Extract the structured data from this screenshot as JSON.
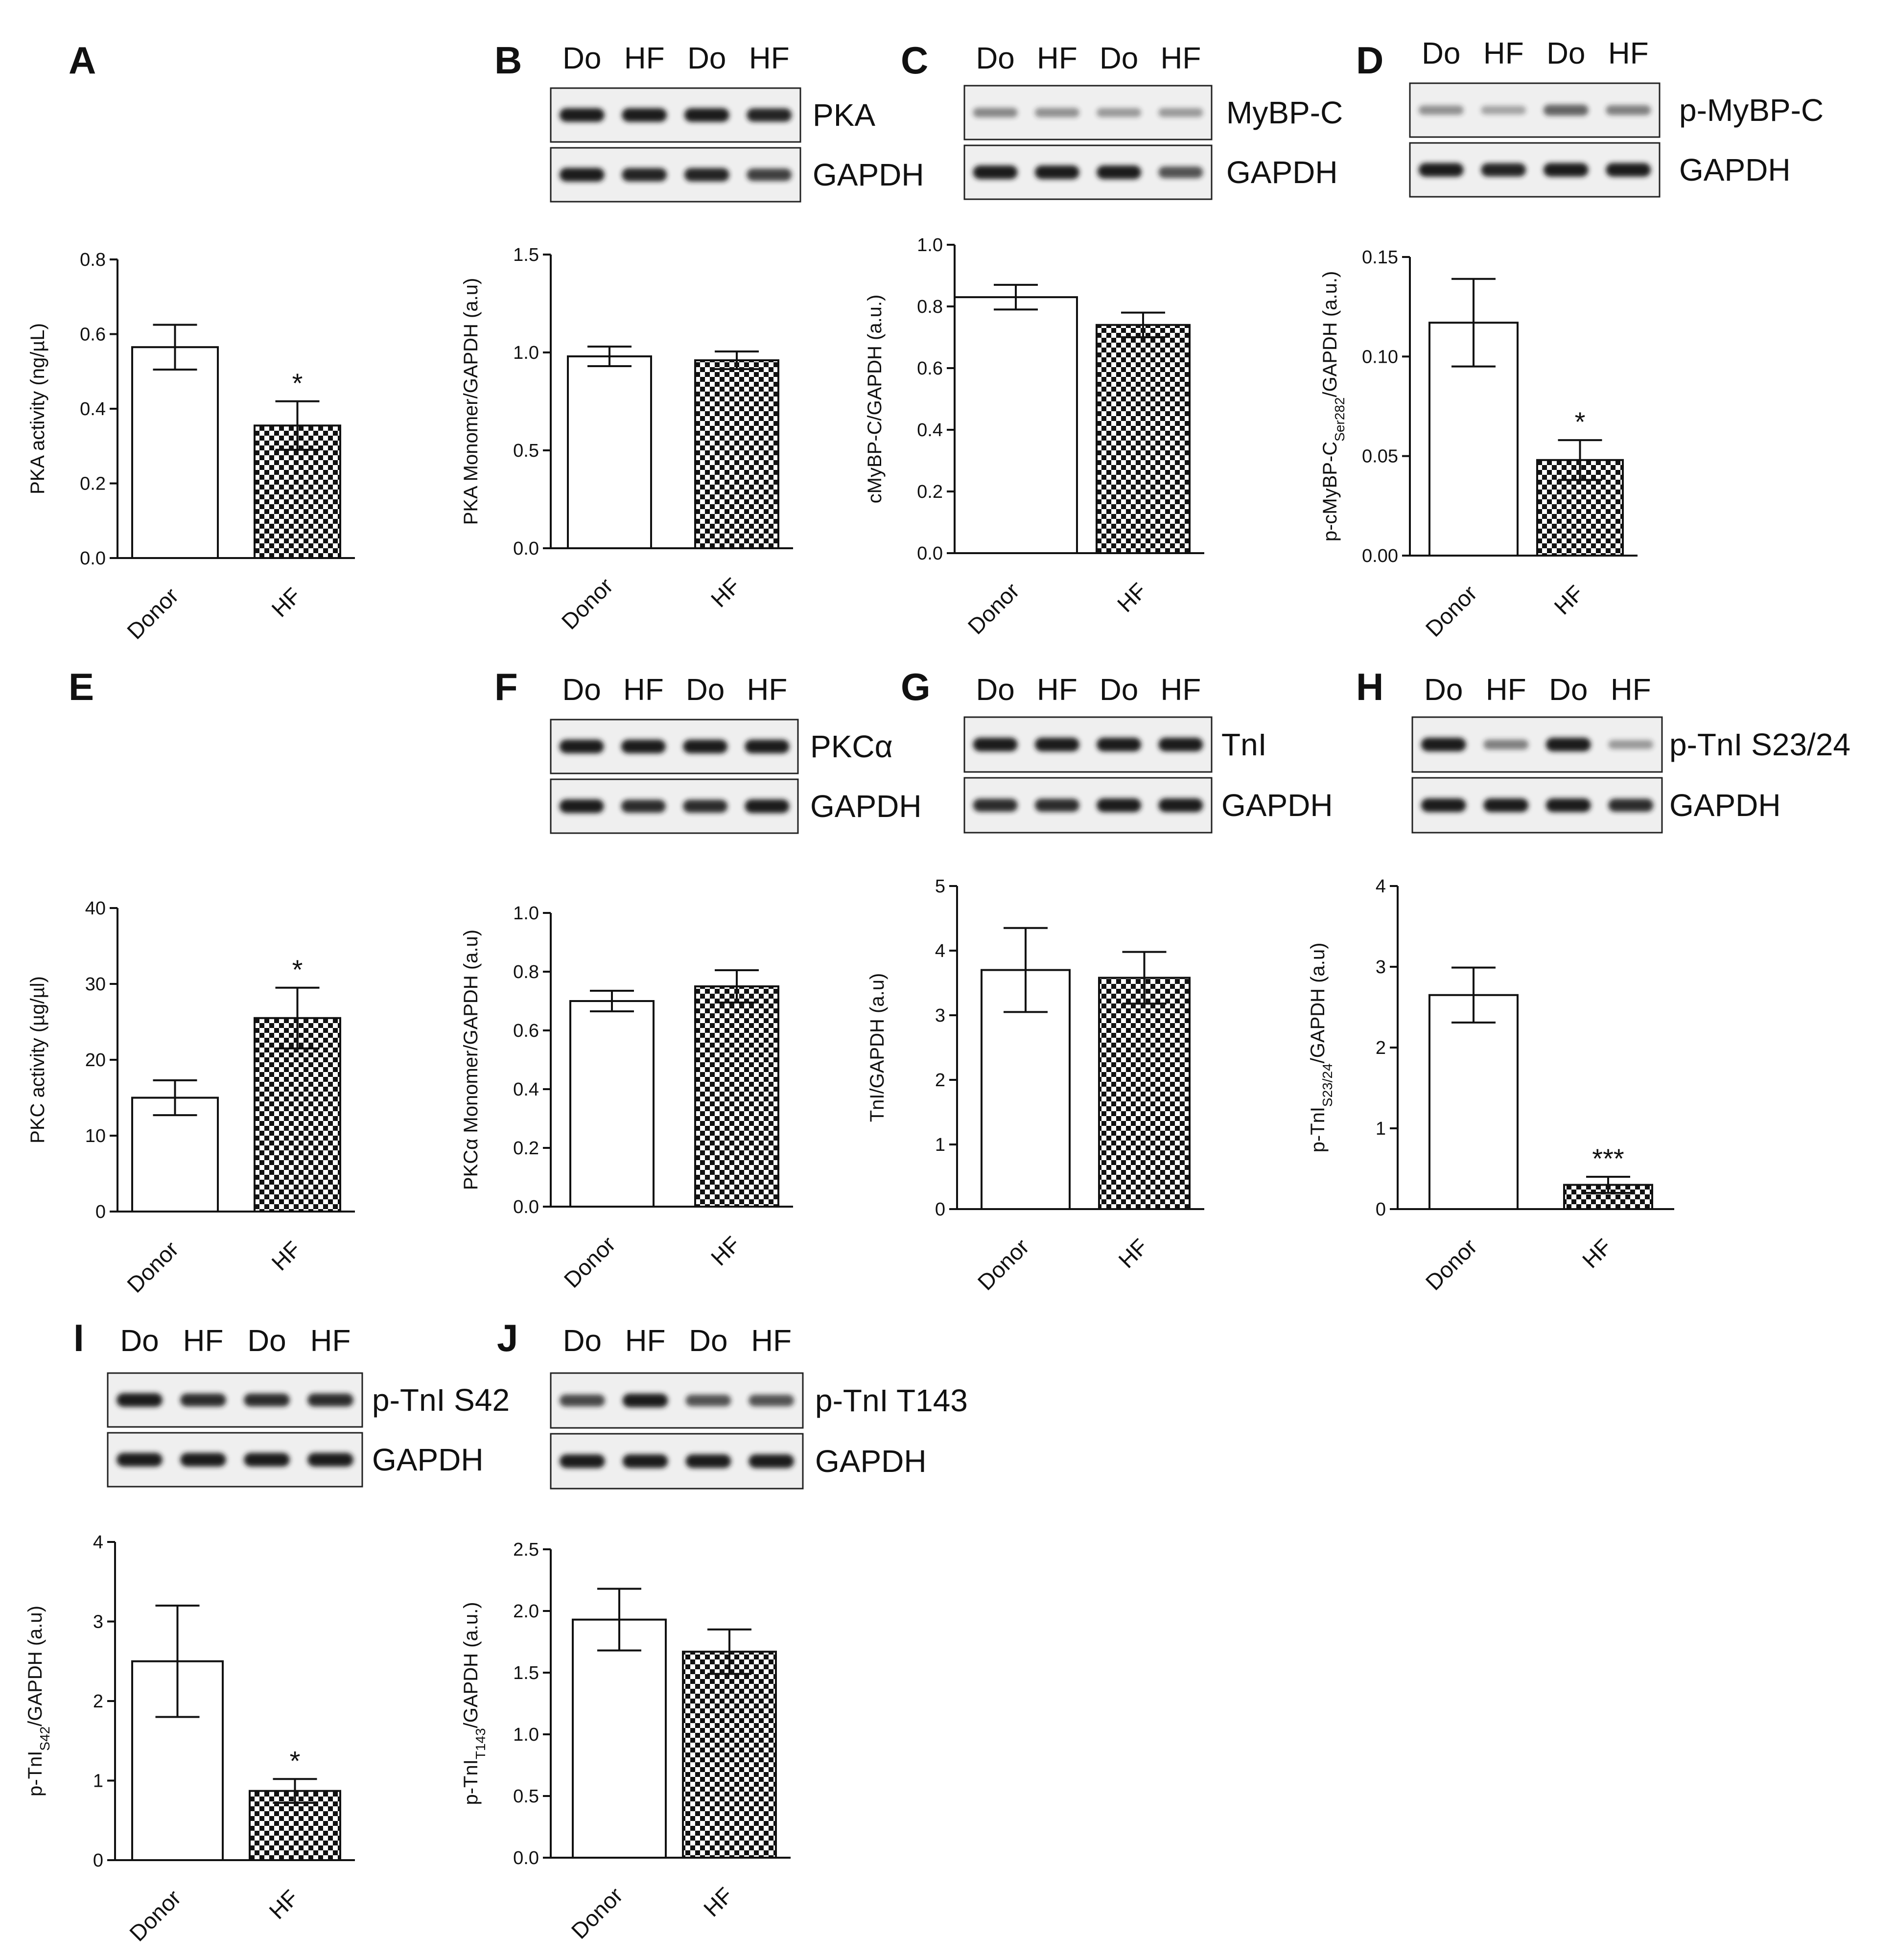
{
  "panels": [
    {
      "letter": "A",
      "blot": null,
      "chart": {
        "ylabel": "PKA activity (ng/µL)",
        "sub": "",
        "ylabel_tail": "",
        "yticks": [
          "0.0",
          "0.2",
          "0.4",
          "0.6",
          "0.8"
        ]
      }
    },
    {
      "letter": "B",
      "blot": {
        "lanes": [
          "Do",
          "HF",
          "Do",
          "HF"
        ],
        "rows": [
          "PKA",
          "GAPDH"
        ]
      },
      "chart": {
        "ylabel": "PKA Monomer/GAPDH (a.u)",
        "sub": "",
        "ylabel_tail": "",
        "yticks": [
          "0.0",
          "0.5",
          "1.0",
          "1.5"
        ]
      }
    },
    {
      "letter": "C",
      "blot": {
        "lanes": [
          "Do",
          "HF",
          "Do",
          "HF"
        ],
        "rows": [
          "MyBP-C",
          "GAPDH"
        ]
      },
      "chart": {
        "ylabel": "cMyBP-C/GAPDH (a.u.)",
        "sub": "",
        "ylabel_tail": "",
        "yticks": [
          "0.0",
          "0.2",
          "0.4",
          "0.6",
          "0.8",
          "1.0"
        ]
      }
    },
    {
      "letter": "D",
      "blot": {
        "lanes": [
          "Do",
          "HF",
          "Do",
          "HF"
        ],
        "rows": [
          "p-MyBP-C",
          "GAPDH"
        ]
      },
      "chart": {
        "ylabel": "p-cMyBP-C",
        "sub": "Ser282",
        "ylabel_tail": "/GAPDH (a.u.)",
        "yticks": [
          "0.00",
          "0.05",
          "0.10",
          "0.15"
        ]
      }
    },
    {
      "letter": "E",
      "blot": null,
      "chart": {
        "ylabel": "PKC activity (µg/µl)",
        "sub": "",
        "ylabel_tail": "",
        "yticks": [
          "0",
          "10",
          "20",
          "30",
          "40"
        ]
      }
    },
    {
      "letter": "F",
      "blot": {
        "lanes": [
          "Do",
          "HF",
          "Do",
          "HF"
        ],
        "rows": [
          "PKCα",
          "GAPDH"
        ]
      },
      "chart": {
        "ylabel": "PKCα Monomer/GAPDH (a.u)",
        "sub": "",
        "ylabel_tail": "",
        "yticks": [
          "0.0",
          "0.2",
          "0.4",
          "0.6",
          "0.8",
          "1.0"
        ]
      }
    },
    {
      "letter": "G",
      "blot": {
        "lanes": [
          "Do",
          "HF",
          "Do",
          "HF"
        ],
        "rows": [
          "TnI",
          "GAPDH"
        ]
      },
      "chart": {
        "ylabel": "TnI/GAPDH (a.u)",
        "sub": "",
        "ylabel_tail": "",
        "yticks": [
          "0",
          "1",
          "2",
          "3",
          "4",
          "5"
        ]
      }
    },
    {
      "letter": "H",
      "blot": {
        "lanes": [
          "Do",
          "HF",
          "Do",
          "HF"
        ],
        "rows": [
          "p-TnI  S23/24",
          "GAPDH"
        ]
      },
      "chart": {
        "ylabel": "p-TnI",
        "sub": "S23/24",
        "ylabel_tail": "/GAPDH (a.u)",
        "yticks": [
          "0",
          "1",
          "2",
          "3",
          "4"
        ]
      }
    },
    {
      "letter": "I",
      "blot": {
        "lanes": [
          "Do",
          "HF",
          "Do",
          "HF"
        ],
        "rows": [
          "p-TnI  S42",
          "GAPDH"
        ]
      },
      "chart": {
        "ylabel": "p-TnI",
        "sub": "S42",
        "ylabel_tail": "/GAPDH (a.u)",
        "yticks": [
          "0",
          "1",
          "2",
          "3",
          "4"
        ]
      }
    },
    {
      "letter": "J",
      "blot": {
        "lanes": [
          "Do",
          "HF",
          "Do",
          "HF"
        ],
        "rows": [
          "p-TnI  T143",
          "GAPDH"
        ]
      },
      "chart": {
        "ylabel": "p-TnI",
        "sub": "T143",
        "ylabel_tail": "/GAPDH (a.u.)",
        "yticks": [
          "0.0",
          "0.5",
          "1.0",
          "1.5",
          "2.0",
          "2.5"
        ]
      }
    }
  ],
  "chart_data": [
    {
      "panel": "A",
      "type": "bar",
      "categories": [
        "Donor",
        "HF"
      ],
      "values": [
        0.565,
        0.355
      ],
      "errors": [
        0.06,
        0.065
      ],
      "significance": [
        "",
        "*"
      ],
      "ylim": [
        0,
        0.8
      ],
      "ylabel": "PKA activity (ng/µL)",
      "xlabel": ""
    },
    {
      "panel": "B",
      "type": "bar",
      "categories": [
        "Donor",
        "HF"
      ],
      "values": [
        0.98,
        0.96
      ],
      "errors": [
        0.05,
        0.045
      ],
      "significance": [
        "",
        ""
      ],
      "ylim": [
        0,
        1.5
      ],
      "ylabel": "PKA Monomer/GAPDH (a.u)",
      "xlabel": ""
    },
    {
      "panel": "C",
      "type": "bar",
      "categories": [
        "Donor",
        "HF"
      ],
      "values": [
        0.83,
        0.74
      ],
      "errors": [
        0.04,
        0.04
      ],
      "significance": [
        "",
        ""
      ],
      "ylim": [
        0,
        1.0
      ],
      "ylabel": "cMyBP-C/GAPDH (a.u.)",
      "xlabel": ""
    },
    {
      "panel": "D",
      "type": "bar",
      "categories": [
        "Donor",
        "HF"
      ],
      "values": [
        0.117,
        0.048
      ],
      "errors": [
        0.022,
        0.01
      ],
      "significance": [
        "",
        "*"
      ],
      "ylim": [
        0,
        0.15
      ],
      "ylabel": "p-cMyBP-CSer282/GAPDH (a.u.)",
      "xlabel": ""
    },
    {
      "panel": "E",
      "type": "bar",
      "categories": [
        "Donor",
        "HF"
      ],
      "values": [
        15.0,
        25.5
      ],
      "errors": [
        2.3,
        4.0
      ],
      "significance": [
        "",
        "*"
      ],
      "ylim": [
        0,
        40
      ],
      "ylabel": "PKC activity (µg/µl)",
      "xlabel": ""
    },
    {
      "panel": "F",
      "type": "bar",
      "categories": [
        "Donor",
        "HF"
      ],
      "values": [
        0.7,
        0.75
      ],
      "errors": [
        0.035,
        0.055
      ],
      "significance": [
        "",
        ""
      ],
      "ylim": [
        0,
        1.0
      ],
      "ylabel": "PKCα Monomer/GAPDH (a.u)",
      "xlabel": ""
    },
    {
      "panel": "G",
      "type": "bar",
      "categories": [
        "Donor",
        "HF"
      ],
      "values": [
        3.7,
        3.58
      ],
      "errors": [
        0.65,
        0.4
      ],
      "significance": [
        "",
        ""
      ],
      "ylim": [
        0,
        5
      ],
      "ylabel": "TnI/GAPDH (a.u)",
      "xlabel": ""
    },
    {
      "panel": "H",
      "type": "bar",
      "categories": [
        "Donor",
        "HF"
      ],
      "values": [
        2.65,
        0.3
      ],
      "errors": [
        0.34,
        0.1
      ],
      "significance": [
        "",
        "***"
      ],
      "ylim": [
        0,
        4
      ],
      "ylabel": "p-TnIS23/24/GAPDH (a.u)",
      "xlabel": ""
    },
    {
      "panel": "I",
      "type": "bar",
      "categories": [
        "Donor",
        "HF"
      ],
      "values": [
        2.5,
        0.87
      ],
      "errors": [
        0.7,
        0.15
      ],
      "significance": [
        "",
        "*"
      ],
      "ylim": [
        0,
        4
      ],
      "ylabel": "p-TnIS42/GAPDH (a.u)",
      "xlabel": ""
    },
    {
      "panel": "J",
      "type": "bar",
      "categories": [
        "Donor",
        "HF"
      ],
      "values": [
        1.93,
        1.67
      ],
      "errors": [
        0.25,
        0.18
      ],
      "significance": [
        "",
        ""
      ],
      "ylim": [
        0,
        2.5
      ],
      "ylabel": "p-TnIT143/GAPDH (a.u.)",
      "xlabel": ""
    }
  ],
  "colors": {
    "ink": "#111111",
    "bar_fill_donor": "#ffffff",
    "bar_pattern_hf": "checkerboard",
    "blot_bg": "#eeeeee",
    "band": "#1e1e1e"
  }
}
